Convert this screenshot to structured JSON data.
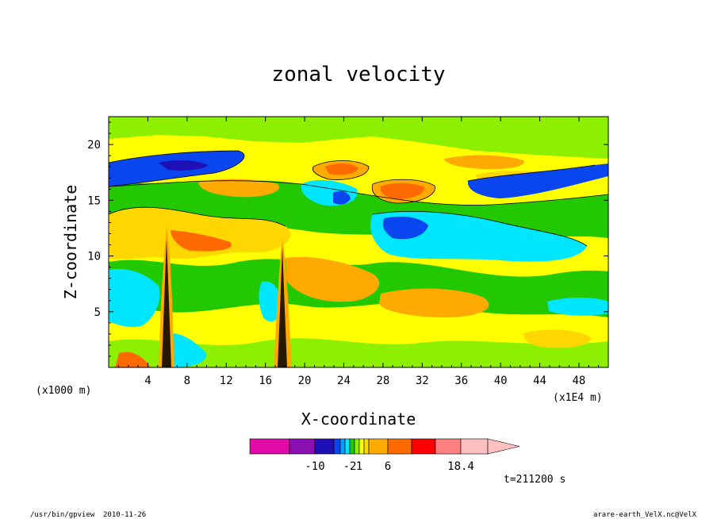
{
  "chart_data": {
    "type": "heatmap",
    "title": "zonal velocity",
    "xlabel": "X-coordinate",
    "ylabel": "Z-coordinate",
    "x_unit_label": "(x1E4 m)",
    "y_unit_label": "(x1000 m)",
    "x_ticks": [
      "4",
      "8",
      "12",
      "16",
      "20",
      "24",
      "28",
      "32",
      "36",
      "40",
      "44",
      "48"
    ],
    "y_ticks": [
      "5",
      "10",
      "15",
      "20"
    ],
    "xlim": [
      0,
      51
    ],
    "ylim": [
      0,
      22.5
    ],
    "colorbar": {
      "labels": [
        "-10",
        "-2",
        "1",
        "6",
        "18.4"
      ],
      "colors": [
        "#e00aa8",
        "#8a10b4",
        "#1e10b4",
        "#0a46f0",
        "#0a9cff",
        "#00e6ff",
        "#22c800",
        "#8cf000",
        "#ffff00",
        "#ffd700",
        "#ffaa00",
        "#ff6a00",
        "#ff0000",
        "#ff8080",
        "#ffc0c0"
      ],
      "extend": "max"
    },
    "time_label": "t=211200 s",
    "background_level": "weak positive (yellow/green)",
    "features": [
      {
        "name": "negative jet",
        "x": [
          0,
          15
        ],
        "z": [
          17.5,
          19
        ]
      },
      {
        "name": "negative jet",
        "x": [
          37,
          51
        ],
        "z": [
          16,
          17.5
        ]
      },
      {
        "name": "positive maximum",
        "x": [
          27,
          33
        ],
        "z": [
          15.5,
          17.5
        ]
      },
      {
        "name": "positive maximum",
        "x": [
          21,
          26
        ],
        "z": [
          17,
          18.5
        ]
      },
      {
        "name": "negative region",
        "x": [
          27,
          36
        ],
        "z": [
          11,
          14
        ]
      },
      {
        "name": "convective column",
        "x": [
          5.5,
          6.5
        ],
        "z": [
          0,
          13
        ]
      },
      {
        "name": "convective column",
        "x": [
          17.5,
          18.5
        ],
        "z": [
          0,
          11
        ]
      }
    ]
  },
  "footer": {
    "left_program": "/usr/bin/gpview",
    "left_date": "2010-11-26",
    "right_source": "arare-earth_VelX.nc@VelX"
  }
}
